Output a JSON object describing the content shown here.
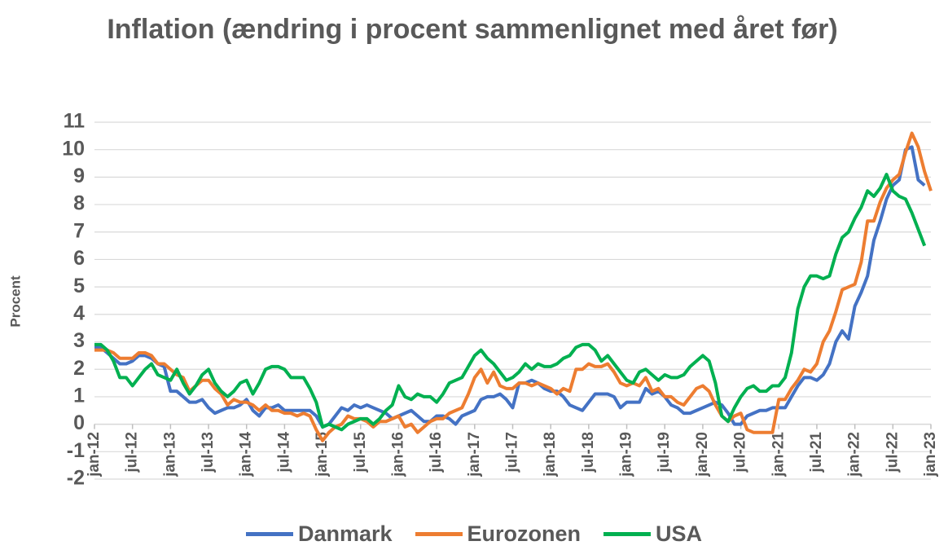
{
  "chart_data": {
    "type": "line",
    "title": "Inflation (ændring i procent sammenlignet med året før)",
    "y_label": "Procent",
    "categories": [
      "jan-12",
      null,
      null,
      null,
      null,
      null,
      "jul-12",
      null,
      null,
      null,
      null,
      null,
      "jan-13",
      null,
      null,
      null,
      null,
      null,
      "jul-13",
      null,
      null,
      null,
      null,
      null,
      "jan-14",
      null,
      null,
      null,
      null,
      null,
      "jul-14",
      null,
      null,
      null,
      null,
      null,
      "jan-15",
      null,
      null,
      null,
      null,
      null,
      "jul-15",
      null,
      null,
      null,
      null,
      null,
      "jan-16",
      null,
      null,
      null,
      null,
      null,
      "jul-16",
      null,
      null,
      null,
      null,
      null,
      "jan-17",
      null,
      null,
      null,
      null,
      null,
      "jul-17",
      null,
      null,
      null,
      null,
      null,
      "jan-18",
      null,
      null,
      null,
      null,
      null,
      "jul-18",
      null,
      null,
      null,
      null,
      null,
      "jan-19",
      null,
      null,
      null,
      null,
      null,
      "jul-19",
      null,
      null,
      null,
      null,
      null,
      "jan-20",
      null,
      null,
      null,
      null,
      null,
      "jul-20",
      null,
      null,
      null,
      null,
      null,
      "jan-21",
      null,
      null,
      null,
      null,
      null,
      "jul-21",
      null,
      null,
      null,
      null,
      null,
      "jan-22",
      null,
      null,
      null,
      null,
      null,
      "jul-22",
      null,
      null,
      null,
      null,
      null,
      "jan-23"
    ],
    "series": [
      {
        "name": "Danmark",
        "color": "#4472c4",
        "values": [
          2.8,
          2.8,
          2.6,
          2.4,
          2.2,
          2.2,
          2.3,
          2.5,
          2.5,
          2.4,
          2.2,
          2.1,
          1.2,
          1.2,
          1.0,
          0.8,
          0.8,
          0.9,
          0.6,
          0.4,
          0.5,
          0.6,
          0.6,
          0.7,
          0.9,
          0.5,
          0.3,
          0.6,
          0.6,
          0.7,
          0.5,
          0.5,
          0.5,
          0.5,
          0.5,
          0.3,
          -0.1,
          0.0,
          0.3,
          0.6,
          0.5,
          0.7,
          0.6,
          0.7,
          0.6,
          0.5,
          0.4,
          0.2,
          0.3,
          0.4,
          0.5,
          0.3,
          0.1,
          0.1,
          0.3,
          0.3,
          0.2,
          0.0,
          0.3,
          0.4,
          0.5,
          0.9,
          1.0,
          1.0,
          1.1,
          0.9,
          0.6,
          1.5,
          1.5,
          1.6,
          1.5,
          1.3,
          1.2,
          1.2,
          1.0,
          0.7,
          0.6,
          0.5,
          0.8,
          1.1,
          1.1,
          1.1,
          1.0,
          0.6,
          0.8,
          0.8,
          0.8,
          1.3,
          1.1,
          1.2,
          1.0,
          0.7,
          0.6,
          0.4,
          0.4,
          0.5,
          0.6,
          0.7,
          0.8,
          0.7,
          0.4,
          0.0,
          0.0,
          0.3,
          0.4,
          0.5,
          0.5,
          0.6,
          0.6,
          0.6,
          1.0,
          1.4,
          1.7,
          1.7,
          1.6,
          1.8,
          2.2,
          3.0,
          3.4,
          3.1,
          4.3,
          4.8,
          5.4,
          6.7,
          7.4,
          8.2,
          8.7,
          8.9,
          10.0,
          10.1,
          8.9,
          8.7,
          null
        ]
      },
      {
        "name": "Eurozonen",
        "color": "#ed7d31",
        "values": [
          2.7,
          2.7,
          2.7,
          2.6,
          2.4,
          2.4,
          2.4,
          2.6,
          2.6,
          2.5,
          2.2,
          2.2,
          2.0,
          1.8,
          1.7,
          1.2,
          1.4,
          1.6,
          1.6,
          1.3,
          1.1,
          0.7,
          0.9,
          0.8,
          0.8,
          0.7,
          0.5,
          0.7,
          0.5,
          0.5,
          0.4,
          0.4,
          0.3,
          0.4,
          0.3,
          -0.2,
          -0.6,
          -0.3,
          -0.1,
          0.0,
          0.3,
          0.2,
          0.2,
          0.1,
          -0.1,
          0.1,
          0.1,
          0.2,
          0.3,
          -0.1,
          0.0,
          -0.3,
          -0.1,
          0.1,
          0.2,
          0.2,
          0.4,
          0.5,
          0.6,
          1.1,
          1.7,
          2.0,
          1.5,
          1.9,
          1.4,
          1.3,
          1.3,
          1.5,
          1.5,
          1.4,
          1.5,
          1.4,
          1.3,
          1.1,
          1.3,
          1.2,
          2.0,
          2.0,
          2.2,
          2.1,
          2.1,
          2.2,
          1.9,
          1.5,
          1.4,
          1.5,
          1.4,
          1.7,
          1.2,
          1.3,
          1.0,
          1.0,
          0.8,
          0.7,
          1.0,
          1.3,
          1.4,
          1.2,
          0.7,
          0.3,
          0.1,
          0.3,
          0.4,
          -0.2,
          -0.3,
          -0.3,
          -0.3,
          -0.3,
          0.9,
          0.9,
          1.3,
          1.6,
          2.0,
          1.9,
          2.2,
          3.0,
          3.4,
          4.1,
          4.9,
          5.0,
          5.1,
          5.9,
          7.4,
          7.4,
          8.1,
          8.6,
          8.9,
          9.1,
          9.9,
          10.6,
          10.1,
          9.2,
          8.5
        ]
      },
      {
        "name": "USA",
        "color": "#00b050",
        "values": [
          2.9,
          2.9,
          2.7,
          2.3,
          1.7,
          1.7,
          1.4,
          1.7,
          2.0,
          2.2,
          1.8,
          1.7,
          1.6,
          2.0,
          1.5,
          1.1,
          1.4,
          1.8,
          2.0,
          1.5,
          1.2,
          1.0,
          1.2,
          1.5,
          1.6,
          1.1,
          1.5,
          2.0,
          2.1,
          2.1,
          2.0,
          1.7,
          1.7,
          1.7,
          1.3,
          0.8,
          -0.1,
          0.0,
          -0.1,
          -0.2,
          0.0,
          0.1,
          0.2,
          0.2,
          0.0,
          0.2,
          0.5,
          0.7,
          1.4,
          1.0,
          0.9,
          1.1,
          1.0,
          1.0,
          0.8,
          1.1,
          1.5,
          1.6,
          1.7,
          2.1,
          2.5,
          2.7,
          2.4,
          2.2,
          1.9,
          1.6,
          1.7,
          1.9,
          2.2,
          2.0,
          2.2,
          2.1,
          2.1,
          2.2,
          2.4,
          2.5,
          2.8,
          2.9,
          2.9,
          2.7,
          2.3,
          2.5,
          2.2,
          1.9,
          1.6,
          1.5,
          1.9,
          2.0,
          1.8,
          1.6,
          1.8,
          1.7,
          1.7,
          1.8,
          2.1,
          2.3,
          2.5,
          2.3,
          1.5,
          0.3,
          0.1,
          0.6,
          1.0,
          1.3,
          1.4,
          1.2,
          1.2,
          1.4,
          1.4,
          1.7,
          2.6,
          4.2,
          5.0,
          5.4,
          5.4,
          5.3,
          5.4,
          6.2,
          6.8,
          7.0,
          7.5,
          7.9,
          8.5,
          8.3,
          8.6,
          9.1,
          8.5,
          8.3,
          8.2,
          7.7,
          7.1,
          6.5,
          null
        ]
      }
    ],
    "ylim": [
      -2,
      11
    ],
    "yticks": [
      -2,
      -1,
      0,
      1,
      2,
      3,
      4,
      5,
      6,
      7,
      8,
      9,
      10,
      11
    ],
    "grid": true,
    "legend": "bottom"
  }
}
